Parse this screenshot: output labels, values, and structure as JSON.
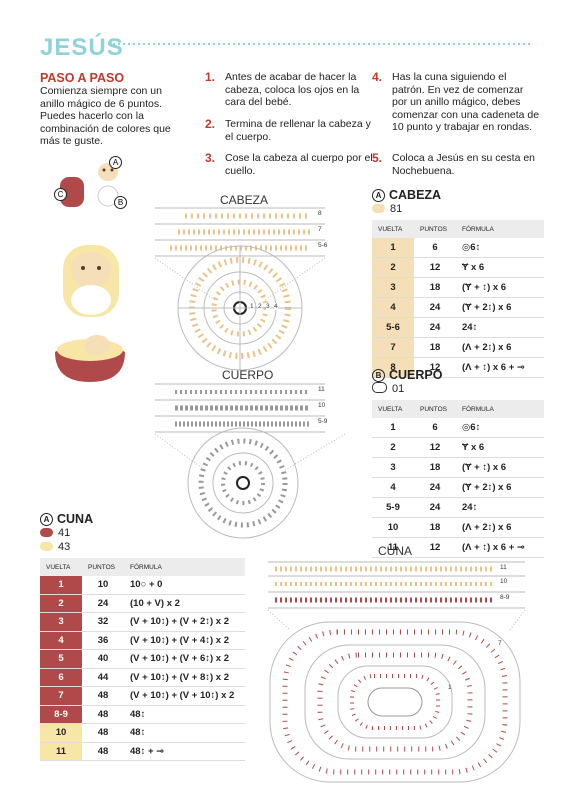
{
  "header": {
    "title": "JESÚS"
  },
  "intro": {
    "title": "PASO A PASO",
    "text": "Comienza siempre con un anillo mágico de 6 puntos. Puedes hacerlo con la combinación de colores que más te guste."
  },
  "steps": [
    {
      "number": "1.",
      "text": "Antes de acabar de hacer la cabeza, coloca los ojos en la cara del bebé."
    },
    {
      "number": "2.",
      "text": "Termina de rellenar la cabeza y el cuerpo."
    },
    {
      "number": "3.",
      "text": "Cose la cabeza al cuerpo por el cuello."
    },
    {
      "number": "4.",
      "text": "Has la cuna siguiendo el patrón. En vez de comenzar por un anillo mágico, debes comenzar con una cadeneta de 10 punto y trabajar en rondas."
    },
    {
      "number": "5.",
      "text": "Coloca a Jesús en su cesta en Nochebuena."
    }
  ],
  "figure": {
    "labels": [
      "A",
      "B",
      "C"
    ]
  },
  "diagrams": {
    "cabeza": {
      "title": "CABEZA",
      "row_labels": [
        "8",
        "7",
        "5-6"
      ],
      "ring_labels": [
        "1",
        "2",
        "3",
        "4"
      ]
    },
    "cuerpo": {
      "title": "CUERPO",
      "row_labels": [
        "11",
        "10",
        "5-9"
      ]
    },
    "cuna": {
      "title": "CUNA",
      "row_labels": [
        "11",
        "10",
        "8-9"
      ],
      "ring_labels": [
        "1",
        "7"
      ]
    }
  },
  "tables": [
    {
      "marker": "A",
      "title": "CABEZA",
      "colors": [
        "81"
      ],
      "header": [
        "VUELTA",
        "PUNTOS",
        "FÓRMULA"
      ],
      "rows": [
        [
          "1",
          "6",
          "◎6↕"
        ],
        [
          "2",
          "12",
          "Ɏ x 6"
        ],
        [
          "3",
          "18",
          "(Ɏ + ↕) x 6"
        ],
        [
          "4",
          "24",
          "(Ɏ + 2↕) x 6"
        ],
        [
          "5-6",
          "24",
          "24↕"
        ],
        [
          "7",
          "18",
          "(Λ + 2↕) x 6"
        ],
        [
          "8",
          "12",
          "(Λ + ↕) x 6 + ⊸"
        ]
      ]
    },
    {
      "marker": "B",
      "title": "CUERPO",
      "colors": [
        "01"
      ],
      "header": [
        "VUELTA",
        "PUNTOS",
        "FÓRMULA"
      ],
      "rows": [
        [
          "1",
          "6",
          "◎6↕"
        ],
        [
          "2",
          "12",
          "Ɏ x 6"
        ],
        [
          "3",
          "18",
          "(Ɏ + ↕) x 6"
        ],
        [
          "4",
          "24",
          "(Ɏ + 2↕) x 6"
        ],
        [
          "5-9",
          "24",
          "24↕"
        ],
        [
          "10",
          "18",
          "(Λ + 2↕) x 6"
        ],
        [
          "11",
          "12",
          "(Λ + ↕) x 6 + ⊸"
        ]
      ]
    },
    {
      "marker": "A",
      "title": "CUNA",
      "colors": [
        "41",
        "43"
      ],
      "header": [
        "VUELTA",
        "PUNTOS",
        "FÓRMULA"
      ],
      "rows": [
        [
          "1",
          "10",
          "10○ + 0"
        ],
        [
          "2",
          "24",
          "(10 + V) x 2"
        ],
        [
          "3",
          "32",
          "(V + 10↕) + (V + 2↕) x 2"
        ],
        [
          "4",
          "36",
          "(V + 10↕) + (V + 4↕) x 2"
        ],
        [
          "5",
          "40",
          "(V + 10↕) + (V + 6↕) x 2"
        ],
        [
          "6",
          "44",
          "(V + 10↕) + (V + 8↕) x 2"
        ],
        [
          "7",
          "48",
          "(V + 10↕) + (V + 10↕) x 2"
        ],
        [
          "8-9",
          "48",
          "48↕"
        ],
        [
          "10",
          "48",
          "48↕"
        ],
        [
          "11",
          "48",
          "48↕ + ⊸"
        ]
      ]
    }
  ]
}
